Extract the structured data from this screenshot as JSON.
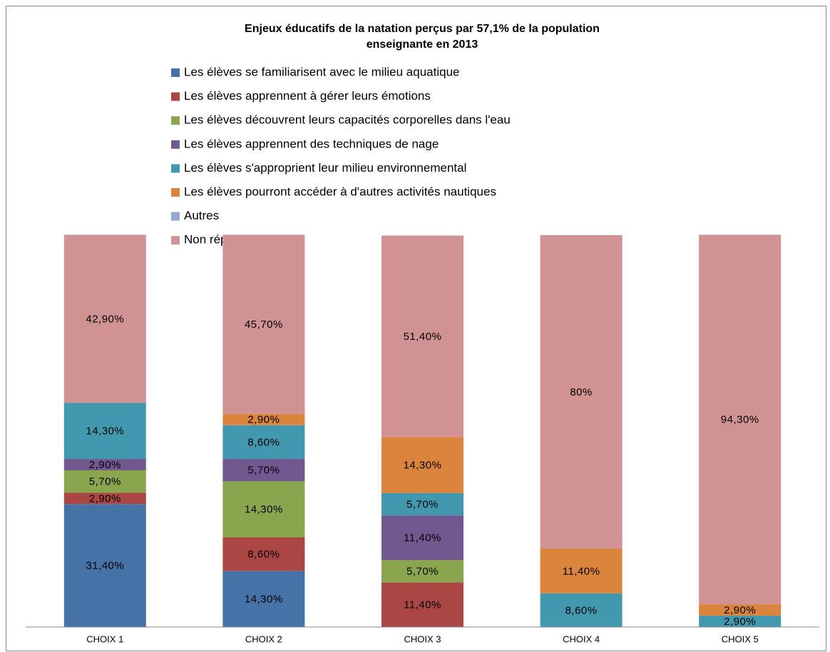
{
  "chart_data": {
    "type": "stacked_bar",
    "title": [
      "Enjeux éducatifs de la natation perçus par 57,1% de la population",
      "enseignante en 2013"
    ],
    "categories": [
      "CHOIX 1",
      "CHOIX 2",
      "CHOIX 3",
      "CHOIX 4",
      "CHOIX 5"
    ],
    "ylim": [
      0,
      100
    ],
    "legend": "top",
    "series": [
      {
        "name": "Les élèves se familiarisent avec le milieu aquatique",
        "color": "#4572a7",
        "values": [
          31.4,
          14.3,
          0,
          0,
          0
        ],
        "value_labels": [
          "31,40%",
          "14,30%",
          null,
          null,
          null
        ]
      },
      {
        "name": "Les élèves apprennent à gérer leurs émotions",
        "color": "#aa4643",
        "values": [
          2.9,
          8.6,
          11.4,
          0,
          0
        ],
        "value_labels": [
          "2,90%",
          "8,60%",
          "11,40%",
          null,
          null
        ]
      },
      {
        "name": "Les élèves découvrent leurs capacités corporelles dans l'eau",
        "color": "#89a54e",
        "values": [
          5.7,
          14.3,
          5.7,
          0,
          0
        ],
        "value_labels": [
          "5,70%",
          "14,30%",
          "5,70%",
          null,
          null
        ]
      },
      {
        "name": "Les élèves apprennent des techniques de nage",
        "color": "#71588f",
        "values": [
          2.9,
          5.7,
          11.4,
          0,
          0
        ],
        "value_labels": [
          "2,90%",
          "5,70%",
          "11,40%",
          null,
          null
        ]
      },
      {
        "name": "Les élèves s'approprient leur milieu environnemental",
        "color": "#4198af",
        "values": [
          14.3,
          8.6,
          5.7,
          8.6,
          2.9
        ],
        "value_labels": [
          "14,30%",
          "8,60%",
          "5,70%",
          "8,60%",
          "2,90%"
        ]
      },
      {
        "name": "Les élèves pourront accéder à d'autres activités nautiques",
        "color": "#db843d",
        "values": [
          0,
          2.9,
          14.3,
          11.4,
          2.9
        ],
        "value_labels": [
          null,
          "2,90%",
          "14,30%",
          "11,40%",
          "2,90%"
        ]
      },
      {
        "name": "Autres",
        "color": "#93a9cf",
        "values": [
          0,
          0,
          0,
          0,
          0
        ],
        "value_labels": [
          null,
          null,
          null,
          null,
          null
        ]
      },
      {
        "name": "Non réponses",
        "color": "#d09293",
        "values": [
          42.9,
          45.7,
          51.4,
          80,
          94.3
        ],
        "value_labels": [
          "42,90%",
          "45,70%",
          "51,40%",
          "80%",
          "94,30%"
        ]
      }
    ]
  }
}
